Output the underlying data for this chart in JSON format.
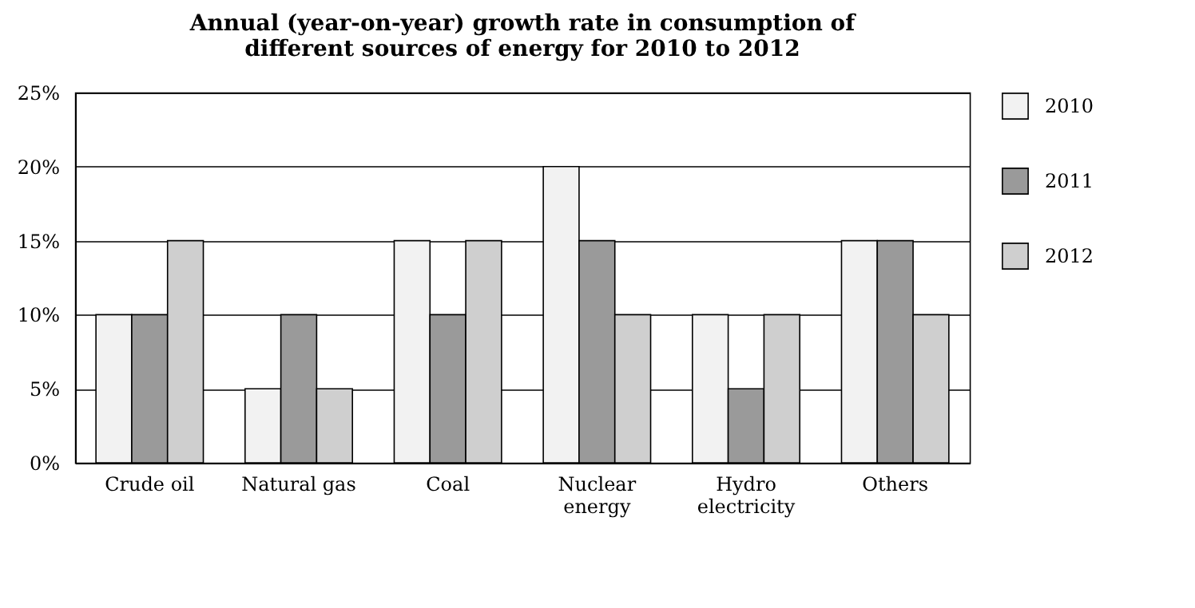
{
  "chart_data": {
    "type": "bar",
    "title": "Annual (year-on-year) growth rate in consumption of different sources of energy for 2010 to 2012",
    "categories": [
      "Crude oil",
      "Natural gas",
      "Coal",
      "Nuclear energy",
      "Hydro electricity",
      "Others"
    ],
    "series": [
      {
        "name": "2010",
        "color": "#f2f2f2",
        "values": [
          10,
          5,
          15,
          20,
          10,
          15
        ]
      },
      {
        "name": "2011",
        "color": "#9a9a9a",
        "values": [
          10,
          10,
          10,
          15,
          5,
          15
        ]
      },
      {
        "name": "2012",
        "color": "#cfcfcf",
        "values": [
          15,
          5,
          15,
          10,
          10,
          10
        ]
      }
    ],
    "ylim": [
      0,
      25
    ],
    "yticks": [
      {
        "value": 0,
        "label": "0%"
      },
      {
        "value": 5,
        "label": "5%"
      },
      {
        "value": 10,
        "label": "10%"
      },
      {
        "value": 15,
        "label": "15%"
      },
      {
        "value": 20,
        "label": "20%"
      },
      {
        "value": 25,
        "label": "25%"
      }
    ],
    "grid": "y",
    "legend": "right"
  }
}
